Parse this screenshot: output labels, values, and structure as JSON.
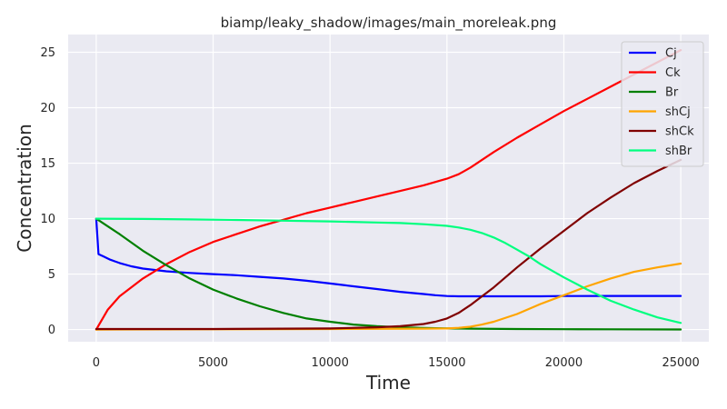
{
  "chart_data": {
    "type": "line",
    "title": "biamp/leaky_shadow/images/main_moreleak.png",
    "xlabel": "Time",
    "ylabel": "Concentration",
    "xlim": [
      -1200,
      26200
    ],
    "ylim": [
      -1.1,
      26.6
    ],
    "xticks": [
      0,
      5000,
      10000,
      15000,
      20000,
      25000
    ],
    "yticks": [
      0,
      5,
      10,
      15,
      20,
      25
    ],
    "grid": true,
    "legend_position": "top-right",
    "series": [
      {
        "name": "Cj",
        "color": "#0000ff",
        "x": [
          0,
          100,
          300,
          600,
          1000,
          1500,
          2000,
          3000,
          4000,
          5000,
          6000,
          7000,
          8000,
          9000,
          10000,
          11000,
          12000,
          13000,
          14000,
          14500,
          15000,
          15500,
          16000,
          17000,
          18000,
          19000,
          20000,
          22000,
          25000
        ],
        "y": [
          10,
          6.8,
          6.6,
          6.3,
          6.0,
          5.7,
          5.5,
          5.25,
          5.1,
          5.0,
          4.9,
          4.75,
          4.6,
          4.4,
          4.15,
          3.9,
          3.65,
          3.4,
          3.2,
          3.1,
          3.02,
          3.0,
          3.0,
          3.0,
          3.0,
          3.0,
          3.02,
          3.03,
          3.03
        ]
      },
      {
        "name": "Ck",
        "color": "#ff0000",
        "x": [
          0,
          500,
          1000,
          2000,
          3000,
          4000,
          5000,
          6000,
          7000,
          8000,
          9000,
          10000,
          11000,
          12000,
          13000,
          14000,
          15000,
          15500,
          16000,
          17000,
          18000,
          19000,
          20000,
          21000,
          22000,
          23000,
          24000,
          25000
        ],
        "y": [
          0,
          1.8,
          3.0,
          4.6,
          5.9,
          7.0,
          7.9,
          8.6,
          9.3,
          9.9,
          10.5,
          11.0,
          11.5,
          12.0,
          12.5,
          13.0,
          13.6,
          14.0,
          14.6,
          16.0,
          17.3,
          18.5,
          19.7,
          20.8,
          21.9,
          23.0,
          24.1,
          25.2
        ]
      },
      {
        "name": "Br",
        "color": "#008000",
        "x": [
          0,
          500,
          1000,
          2000,
          3000,
          4000,
          5000,
          6000,
          7000,
          8000,
          9000,
          10000,
          11000,
          12000,
          13000,
          14000,
          15000,
          16000,
          18000,
          20000,
          22000,
          25000
        ],
        "y": [
          10,
          9.3,
          8.6,
          7.1,
          5.8,
          4.6,
          3.6,
          2.8,
          2.1,
          1.5,
          1.0,
          0.7,
          0.45,
          0.3,
          0.2,
          0.14,
          0.1,
          0.08,
          0.05,
          0.03,
          0.02,
          0.01
        ]
      },
      {
        "name": "shCj",
        "color": "#ffa500",
        "x": [
          0,
          5000,
          10000,
          14000,
          15000,
          15500,
          16000,
          16500,
          17000,
          18000,
          19000,
          20000,
          21000,
          22000,
          23000,
          24000,
          25000
        ],
        "y": [
          0,
          0.02,
          0.05,
          0.08,
          0.1,
          0.15,
          0.25,
          0.45,
          0.7,
          1.4,
          2.3,
          3.1,
          3.9,
          4.6,
          5.2,
          5.6,
          5.95
        ]
      },
      {
        "name": "shCk",
        "color": "#800000",
        "x": [
          0,
          5000,
          10000,
          12000,
          13000,
          14000,
          14500,
          15000,
          15500,
          16000,
          16500,
          17000,
          18000,
          19000,
          20000,
          21000,
          22000,
          23000,
          24000,
          25000
        ],
        "y": [
          0.05,
          0.05,
          0.1,
          0.2,
          0.3,
          0.5,
          0.7,
          1.0,
          1.5,
          2.2,
          3.0,
          3.8,
          5.6,
          7.3,
          8.9,
          10.5,
          11.9,
          13.2,
          14.3,
          15.3
        ]
      },
      {
        "name": "shBr",
        "color": "#00ff7f",
        "x": [
          0,
          2000,
          4000,
          6000,
          8000,
          10000,
          12000,
          13000,
          14000,
          15000,
          15500,
          16000,
          16500,
          17000,
          17500,
          18000,
          18500,
          19000,
          20000,
          21000,
          22000,
          23000,
          24000,
          25000
        ],
        "y": [
          10,
          9.97,
          9.93,
          9.88,
          9.82,
          9.75,
          9.65,
          9.6,
          9.5,
          9.35,
          9.2,
          9.0,
          8.7,
          8.3,
          7.8,
          7.2,
          6.6,
          5.9,
          4.7,
          3.6,
          2.6,
          1.8,
          1.1,
          0.6
        ]
      }
    ]
  }
}
